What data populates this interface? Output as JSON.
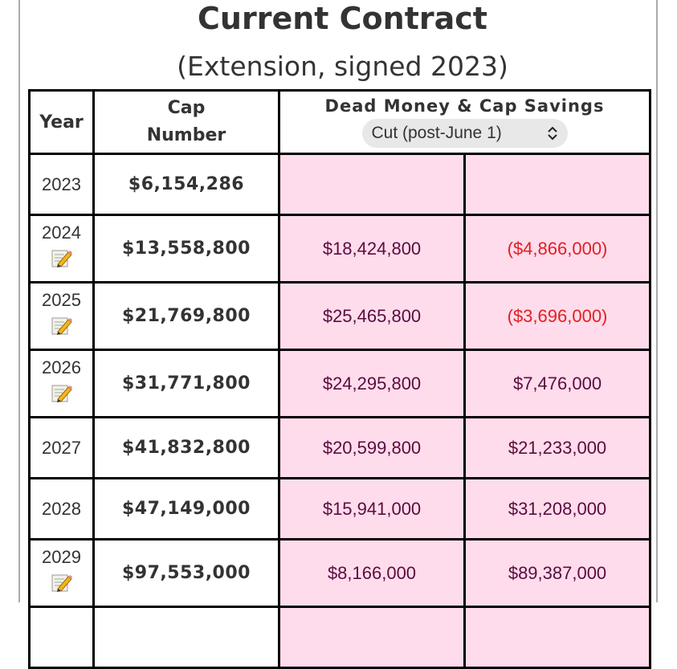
{
  "header": {
    "title": "Current Contract",
    "subtitle": "(Extension, signed 2023)"
  },
  "table": {
    "columns": {
      "year": "Year",
      "cap_line1": "Cap",
      "cap_line2": "Number",
      "dead": "Dead Money & Cap Savings"
    },
    "cut_select": {
      "value": "Cut (post-June 1)"
    },
    "rows": [
      {
        "year": "2023",
        "cap": "$6,154,286",
        "dead": "",
        "savings": "",
        "edit_icon": false
      },
      {
        "year": "2024",
        "cap": "$13,558,800",
        "dead": "$18,424,800",
        "savings": "($4,866,000)",
        "edit_icon": true
      },
      {
        "year": "2025",
        "cap": "$21,769,800",
        "dead": "$25,465,800",
        "savings": "($3,696,000)",
        "edit_icon": true
      },
      {
        "year": "2026",
        "cap": "$31,771,800",
        "dead": "$24,295,800",
        "savings": "$7,476,000",
        "edit_icon": true
      },
      {
        "year": "2027",
        "cap": "$41,832,800",
        "dead": "$20,599,800",
        "savings": "$21,233,000",
        "edit_icon": false
      },
      {
        "year": "2028",
        "cap": "$47,149,000",
        "dead": "$15,941,000",
        "savings": "$31,208,000",
        "edit_icon": false
      },
      {
        "year": "2029",
        "cap": "$97,553,000",
        "dead": "$8,166,000",
        "savings": "$89,387,000",
        "edit_icon": true
      }
    ]
  },
  "icons": {
    "edit": "pencil-paper-icon",
    "select_arrow": "chevron-up-down-icon"
  },
  "colors": {
    "dead_cell_bg": "#ffdcec",
    "dead_cell_border": "#7a0e45",
    "dead_text": "#5a0c3e",
    "negative": "#e02020"
  }
}
